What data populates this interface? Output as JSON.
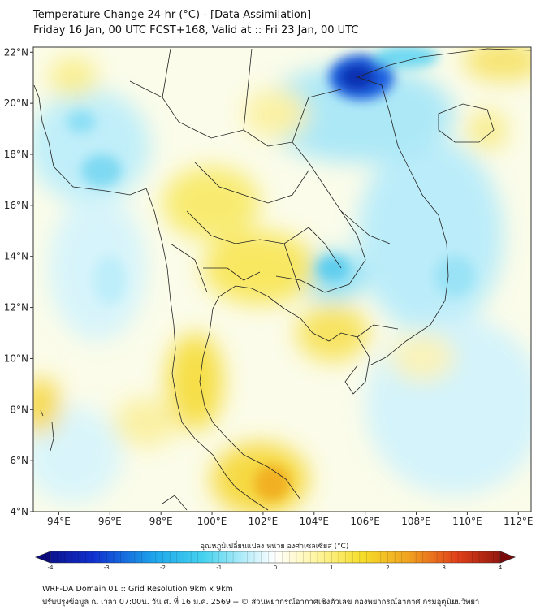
{
  "title": {
    "line1": "Temperature Change 24-hr (°C) - [Data Assimilation]",
    "line2": "Friday 16 Jan, 00 UTC FCST+168, Valid at :: Fri 23 Jan, 00 UTC"
  },
  "axes": {
    "lat_labels": [
      "22°N",
      "20°N",
      "18°N",
      "16°N",
      "14°N",
      "12°N",
      "10°N",
      "8°N",
      "6°N",
      "4°N"
    ],
    "lon_labels": [
      "94°E",
      "96°E",
      "98°E",
      "100°E",
      "102°E",
      "104°E",
      "106°E",
      "108°E",
      "110°E",
      "112°E"
    ],
    "lon_range": [
      93,
      112.5
    ],
    "lat_range": [
      4,
      22.2
    ]
  },
  "colorbar": {
    "label": "อุณหภูมิเปลี่ยนแปลง หน่วย องศาเซลเซียส (°C)",
    "ticks": [
      "-4",
      "-3",
      "-2",
      "-1",
      "0",
      "1",
      "2",
      "3",
      "4"
    ],
    "range": [
      -4,
      4
    ]
  },
  "footer": {
    "line1": "WRF-DA Domain 01 :: Grid Resolution 9km x 9km",
    "line2": "ปรับปรุงข้อมูล ณ เวลา 07:00น. วัน ศ. ที่ 16 ม.ค. 2569 -- © ส่วนพยากรณ์อากาศเชิงตัวเลข กองพยากรณ์อากาศ กรมอุตุนิยมวิทยา"
  },
  "field_highlights": [
    {
      "name": "northern-vietnam-cold-core",
      "value": -3.5
    },
    {
      "name": "malay-peninsula-warm",
      "value": 2.0
    },
    {
      "name": "gulf-of-thailand-warm",
      "value": 1.2
    },
    {
      "name": "central-thailand-warm",
      "value": 1.0
    },
    {
      "name": "cambodia-lake-cool",
      "value": -1.0
    },
    {
      "name": "andaman-cool",
      "value": -1.2
    }
  ],
  "colors": {
    "neutral": "#ffffff",
    "warm_light": "#fff6a8",
    "warm_mid": "#f6de2a",
    "warm_strong": "#f0a020",
    "cool_light": "#cdf3fb",
    "cool_mid": "#45d2ee",
    "cool_strong": "#0a2fb0"
  }
}
